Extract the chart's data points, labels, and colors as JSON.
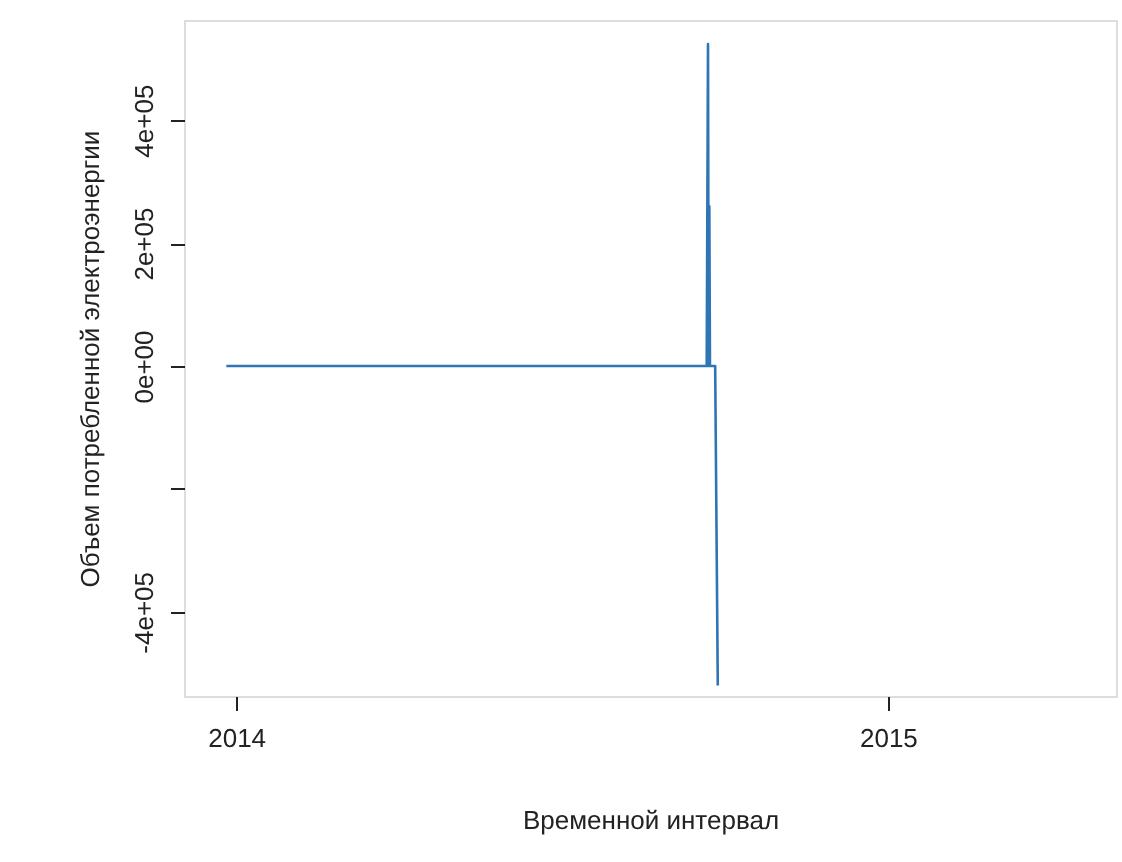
{
  "chart_data": {
    "type": "line",
    "xlabel": "Временной интервал",
    "ylabel": "Объем потребленной электроэнергии",
    "x": [
      2013.985,
      2014.722,
      2014.724,
      2014.725,
      2014.726,
      2014.727,
      2014.735,
      2014.737,
      2014.739
    ],
    "series": [
      {
        "color": "#2e75b6",
        "values": [
          0,
          0,
          524000,
          0,
          260000,
          0,
          0,
          -260000,
          -520000
        ]
      }
    ],
    "xlim": [
      2013.92,
      2015.35
    ],
    "xticks": [
      2014,
      2015
    ],
    "ylim": [
      -537000,
      563000
    ],
    "yticks": [
      {
        "value": 400000,
        "label": "4e+05"
      },
      {
        "value": 200000,
        "label": "2e+05"
      },
      {
        "value": 0,
        "label": "0e+00"
      },
      {
        "value": -200000,
        "label": null
      },
      {
        "value": -400000,
        "label": "-4e+05"
      }
    ],
    "grid": false,
    "marker": "none",
    "line_style": "solid"
  }
}
